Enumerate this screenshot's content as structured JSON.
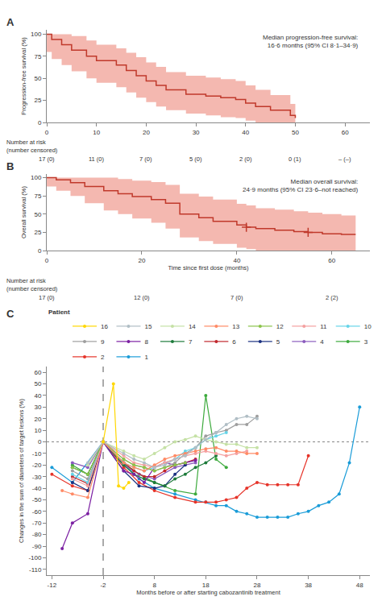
{
  "chart_data": [
    {
      "type": "line",
      "title": "A",
      "ylabel": "Progression-free survival (%)",
      "xlim": [
        0,
        65
      ],
      "ylim": [
        0,
        105
      ],
      "xticks": [
        0,
        10,
        20,
        30,
        40,
        50,
        60
      ],
      "yticks": [
        0,
        25,
        50,
        75,
        100
      ],
      "grid": false,
      "annotation": "Median progression-free survival:\n16·6 months (95% CI 8·1–34·9)",
      "series": [
        {
          "type": "band",
          "line_style": "step",
          "color": "#f4b8b0",
          "x": [
            0,
            1,
            3,
            5,
            8,
            10,
            14,
            16,
            18,
            20,
            22,
            24,
            28,
            32,
            35,
            38,
            40,
            42,
            45,
            49,
            50
          ],
          "ci_lower": [
            80,
            72,
            65,
            58,
            50,
            45,
            40,
            34,
            28,
            23,
            18,
            14,
            10,
            8,
            6,
            5,
            2,
            0,
            0,
            0,
            0
          ],
          "ci_upper": [
            100,
            100,
            100,
            98,
            93,
            88,
            84,
            79,
            74,
            68,
            63,
            57,
            53,
            51,
            49,
            47,
            42,
            37,
            31,
            21,
            17
          ]
        },
        {
          "type": "line",
          "line_style": "step",
          "color": "#c0392b",
          "x": [
            0,
            1,
            3,
            5,
            8,
            10,
            14,
            16,
            18,
            20,
            22,
            24,
            28,
            32,
            35,
            38,
            40,
            42,
            45,
            49,
            50
          ],
          "values": [
            100,
            94,
            88,
            82,
            75,
            70,
            65,
            59,
            53,
            47,
            42,
            37,
            32,
            30,
            28,
            26,
            22,
            18,
            14,
            8,
            5
          ]
        }
      ],
      "risk_table": {
        "title": "Number at risk",
        "subtitle": "(number censored)",
        "x": [
          0,
          10,
          20,
          30,
          40,
          50,
          60
        ],
        "labels": [
          "17 (0)",
          "11 (0)",
          "7 (0)",
          "5 (0)",
          "2 (0)",
          "0 (1)",
          "– (–)"
        ]
      }
    },
    {
      "type": "line",
      "title": "B",
      "ylabel": "Overall survival (%)",
      "xlabel": "Time since first dose (months)",
      "xlim": [
        0,
        68
      ],
      "ylim": [
        0,
        105
      ],
      "xticks": [
        0,
        20,
        40,
        60
      ],
      "yticks": [
        0,
        25,
        50,
        75,
        100
      ],
      "grid": false,
      "annotation": "Median overall survival:\n24·9 months (95% CI 23·6–not reached)",
      "series": [
        {
          "type": "band",
          "line_style": "step",
          "color": "#f4b8b0",
          "x": [
            0,
            2,
            5,
            8,
            12,
            15,
            18,
            22,
            25,
            28,
            32,
            35,
            40,
            42,
            44,
            48,
            52,
            55,
            58,
            62,
            65
          ],
          "ci_lower": [
            88,
            82,
            75,
            65,
            55,
            50,
            44,
            38,
            30,
            18,
            13,
            9,
            4,
            2,
            0,
            0,
            0,
            0,
            0,
            0,
            0
          ],
          "ci_upper": [
            100,
            100,
            100,
            100,
            100,
            98,
            96,
            94,
            90,
            78,
            74,
            70,
            64,
            62,
            58,
            56,
            54,
            52,
            50,
            48,
            48
          ]
        },
        {
          "type": "line",
          "line_style": "step",
          "color": "#c0392b",
          "x": [
            0,
            2,
            5,
            8,
            12,
            15,
            18,
            22,
            25,
            28,
            32,
            35,
            40,
            42,
            44,
            48,
            52,
            55,
            58,
            62,
            65
          ],
          "values": [
            100,
            97,
            93,
            88,
            82,
            78,
            74,
            70,
            65,
            50,
            45,
            40,
            35,
            32,
            30,
            28,
            26,
            25,
            23,
            22,
            22
          ]
        },
        {
          "type": "scatter",
          "marker": "cross",
          "color": "#c0392b",
          "x": [
            42,
            55
          ],
          "values": [
            32,
            25
          ]
        }
      ],
      "risk_table": {
        "title": "Number at risk",
        "subtitle": "(number censored)",
        "x": [
          0,
          20,
          40,
          60
        ],
        "labels": [
          "17 (0)",
          "12 (0)",
          "7 (0)",
          "2 (2)"
        ]
      }
    },
    {
      "type": "line",
      "title": "C",
      "xlabel": "Months before or after starting cabozantinib treatment",
      "ylabel": "Changes in the sum of diameters of target lesions (%)",
      "xlim": [
        -13,
        50
      ],
      "ylim": [
        -115,
        65
      ],
      "xticks": [
        -12,
        -2,
        8,
        18,
        28,
        38,
        48
      ],
      "yticks": [
        -110,
        -100,
        -90,
        -80,
        -70,
        -60,
        -50,
        -40,
        -30,
        -20,
        -10,
        0,
        10,
        20,
        30,
        40,
        50,
        60
      ],
      "grid": false,
      "vline": {
        "value": -2,
        "line_style": "dashed"
      },
      "hline": {
        "value": 0,
        "line_style": "dotted"
      },
      "legend": "top",
      "legend_title": "Patient",
      "marker": "circle",
      "series": [
        {
          "name": "1",
          "color": "#1a9cd8",
          "x": [
            -12,
            -8,
            -2,
            2,
            5,
            8,
            12,
            16,
            18,
            20,
            22,
            24,
            26,
            28,
            30,
            32,
            34,
            36,
            38,
            40,
            42,
            44,
            46,
            48
          ],
          "values": [
            -22,
            -35,
            0,
            -18,
            -32,
            -40,
            -45,
            -50,
            -52,
            -55,
            -55,
            -60,
            -62,
            -65,
            -65,
            -65,
            -65,
            -62,
            -60,
            -55,
            -52,
            -45,
            -18,
            30
          ]
        },
        {
          "name": "2",
          "color": "#e63329",
          "x": [
            -12,
            -8,
            -5,
            -2,
            2,
            5,
            8,
            12,
            16,
            18,
            20,
            22,
            24,
            26,
            28,
            30,
            32,
            34,
            36,
            38
          ],
          "values": [
            -28,
            -38,
            -42,
            0,
            -22,
            -35,
            -42,
            -48,
            -52,
            -52,
            -52,
            -50,
            -48,
            -40,
            -35,
            -37,
            -37,
            -37,
            -37,
            -12
          ]
        },
        {
          "name": "3",
          "color": "#3daa3d",
          "x": [
            -8,
            -5,
            -2,
            2,
            5,
            8,
            12,
            16,
            18,
            20,
            22
          ],
          "values": [
            -20,
            -28,
            0,
            -18,
            -28,
            -35,
            -42,
            -45,
            40,
            -15,
            -22
          ]
        },
        {
          "name": "4",
          "color": "#8b5cbe",
          "x": [
            -8,
            -5,
            -2,
            2,
            5,
            8,
            12,
            16
          ],
          "values": [
            -18,
            -22,
            0,
            -20,
            -28,
            -32,
            -22,
            -18
          ]
        },
        {
          "name": "5",
          "color": "#1a3080",
          "x": [
            -8,
            -5,
            -2,
            2,
            5,
            8,
            10,
            12,
            14
          ],
          "values": [
            -35,
            -42,
            0,
            -25,
            -38,
            -40,
            -38,
            -28,
            -20
          ]
        },
        {
          "name": "6",
          "color": "#c1272d",
          "x": [
            -8,
            -5,
            -2,
            2,
            4,
            6,
            8,
            10,
            12,
            14,
            16
          ],
          "values": [
            -30,
            -36,
            0,
            -18,
            -25,
            -30,
            -30,
            -25,
            -20,
            -18,
            -15
          ]
        },
        {
          "name": "7",
          "color": "#1d7a3a",
          "x": [
            -8,
            -5,
            -2,
            2,
            4,
            6,
            8,
            10,
            12,
            14,
            16,
            18,
            20
          ],
          "values": [
            -22,
            -28,
            0,
            -20,
            -28,
            -32,
            -35,
            -38,
            -32,
            -28,
            -22,
            -18,
            -12
          ]
        },
        {
          "name": "8",
          "color": "#7b1fa2",
          "x": [
            -10,
            -8,
            -5,
            -2,
            2,
            4,
            6,
            8,
            10,
            12,
            14,
            16
          ],
          "values": [
            -92,
            -70,
            -62,
            0,
            -25,
            -28,
            -35,
            -22,
            -18,
            -20,
            -18,
            -16
          ]
        },
        {
          "name": "9",
          "color": "#9e9e9e",
          "x": [
            -8,
            -5,
            -2,
            2,
            4,
            6,
            8,
            10,
            12,
            14,
            16,
            18,
            20,
            22,
            24,
            26,
            28
          ],
          "values": [
            -25,
            -32,
            0,
            -15,
            -20,
            -22,
            -25,
            -22,
            -18,
            -10,
            -5,
            5,
            8,
            10,
            15,
            15,
            22
          ]
        },
        {
          "name": "10",
          "color": "#66d4e8",
          "x": [
            -8,
            -5,
            -2,
            2,
            4,
            6,
            8,
            10,
            12,
            14,
            16,
            18,
            20,
            22
          ],
          "values": [
            -28,
            -35,
            0,
            -18,
            -22,
            -25,
            -22,
            -18,
            -15,
            -8,
            -5,
            2,
            5,
            8
          ]
        },
        {
          "name": "11",
          "color": "#f4a0a0",
          "x": [
            -8,
            -5,
            -2,
            2,
            4,
            6,
            8,
            10,
            12,
            14,
            16,
            18,
            20,
            22,
            24,
            26
          ],
          "values": [
            -32,
            -38,
            0,
            -12,
            -18,
            -20,
            -22,
            -18,
            -15,
            -12,
            -10,
            -8,
            -10,
            -12,
            -10,
            -8
          ]
        },
        {
          "name": "12",
          "color": "#8bc34a",
          "x": [
            -8,
            -5,
            -2,
            2,
            4,
            6,
            8,
            10,
            12,
            14
          ],
          "values": [
            -22,
            -28,
            0,
            -15,
            -20,
            -22,
            -25,
            -22,
            -20,
            -18
          ]
        },
        {
          "name": "13",
          "color": "#ff8a65",
          "x": [
            -10,
            -8,
            -5,
            -2,
            2,
            4,
            6,
            8,
            10,
            12,
            14,
            16,
            18,
            20,
            22,
            24,
            26,
            28
          ],
          "values": [
            -42,
            -45,
            -48,
            0,
            -18,
            -22,
            -25,
            -20,
            -15,
            -12,
            -10,
            -8,
            -6,
            -5,
            -8,
            -8,
            -10,
            -10
          ]
        },
        {
          "name": "14",
          "color": "#c5e1a5",
          "x": [
            -5,
            -2,
            2,
            4,
            6,
            8,
            10,
            12,
            14,
            16,
            18,
            20,
            22,
            24,
            26,
            28
          ],
          "values": [
            -20,
            0,
            -8,
            -12,
            -15,
            -10,
            -5,
            0,
            2,
            5,
            2,
            0,
            -2,
            -2,
            -5,
            -5
          ]
        },
        {
          "name": "15",
          "color": "#b0bec5",
          "x": [
            -5,
            -2,
            2,
            4,
            6,
            8,
            10,
            12,
            14,
            16,
            18,
            20,
            22,
            24,
            26,
            28
          ],
          "values": [
            -18,
            0,
            -10,
            -15,
            -18,
            -22,
            -20,
            -15,
            -12,
            -5,
            2,
            8,
            15,
            20,
            22,
            20
          ]
        },
        {
          "name": "16",
          "color": "#ffd700",
          "x": [
            -2,
            0,
            1,
            2,
            3
          ],
          "values": [
            0,
            50,
            -38,
            -40,
            -35
          ]
        }
      ]
    }
  ]
}
